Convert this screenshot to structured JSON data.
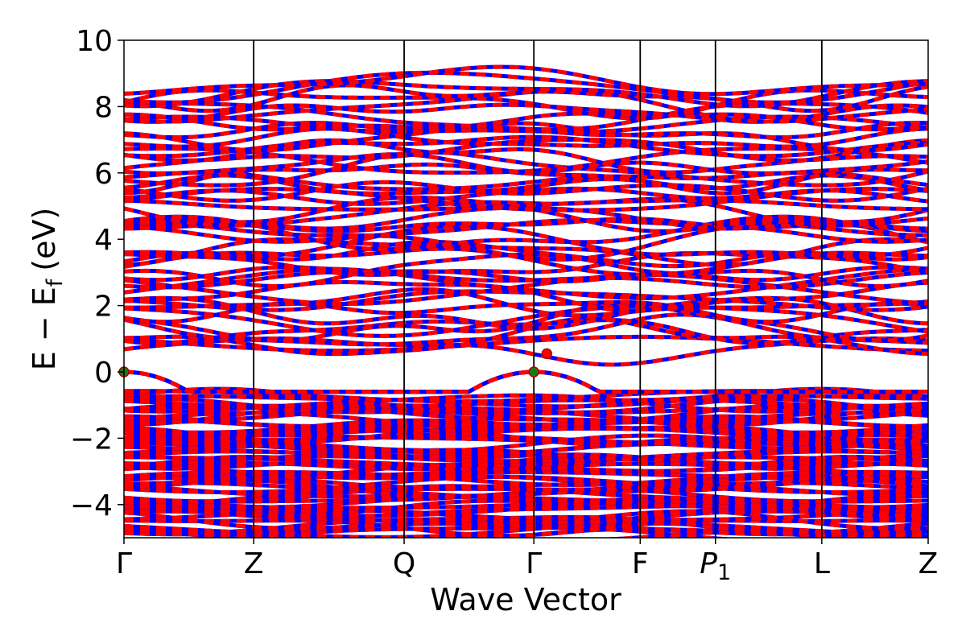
{
  "chart_data": {
    "type": "line",
    "title": "",
    "xlabel": "Wave Vector",
    "ylabel": {
      "main": "E − E",
      "sub": "f",
      "unit": "(eV)"
    },
    "ylim": [
      -5,
      10
    ],
    "yticks": [
      {
        "value": -4,
        "label": "−4"
      },
      {
        "value": -2,
        "label": "−2"
      },
      {
        "value": 0,
        "label": "0"
      },
      {
        "value": 2,
        "label": "2"
      },
      {
        "value": 4,
        "label": "4"
      },
      {
        "value": 6,
        "label": "6"
      },
      {
        "value": 8,
        "label": "8"
      },
      {
        "value": 10,
        "label": "10"
      }
    ],
    "kpath": [
      {
        "label": "Γ",
        "pos": 0.0
      },
      {
        "label": "Z",
        "pos": 1.0
      },
      {
        "label": "Q",
        "pos": 2.16
      },
      {
        "label": "Γ",
        "pos": 3.16
      },
      {
        "label": "F",
        "pos": 3.98
      },
      {
        "label": "P",
        "sub": "1",
        "pos": 4.56
      },
      {
        "label": "L",
        "pos": 5.38
      },
      {
        "label": "Z",
        "pos": 6.2
      }
    ],
    "grid": false,
    "band_line_colors": [
      "#ff0000",
      "#0000ff"
    ],
    "band_line_style": "red and blue dashed overlapping",
    "gap": {
      "vbm": 0.0,
      "cbm": 0.55
    },
    "highlighted_points": [
      {
        "k": 0.0,
        "e": 0.0,
        "color": "#1a7a1a"
      },
      {
        "k": 3.16,
        "e": 0.0,
        "color": "#1a7a1a"
      },
      {
        "k": 3.26,
        "e": 0.55,
        "color": "#ff0000"
      }
    ]
  }
}
